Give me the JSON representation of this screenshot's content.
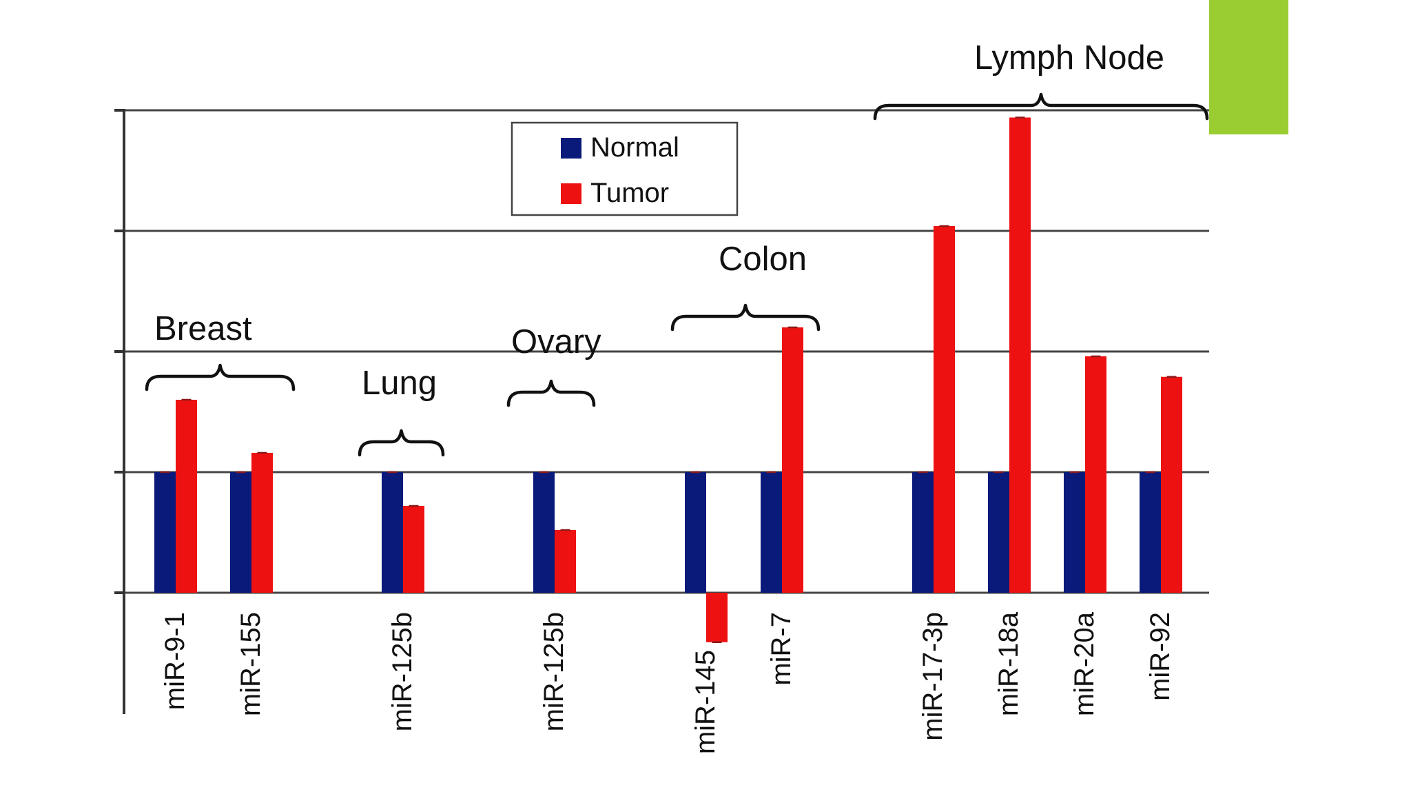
{
  "chart_data": {
    "type": "bar",
    "title": "",
    "xlabel": "",
    "ylabel": "",
    "ylim": [
      -1,
      4
    ],
    "grid": true,
    "legend_position": "top-center",
    "categories": [
      "miR-9-1",
      "miR-155",
      "miR-125b",
      "miR-125b",
      "miR-145",
      "miR-7",
      "miR-17-3p",
      "miR-18a",
      "miR-20a",
      "miR-92"
    ],
    "series": [
      {
        "name": "Normal",
        "color": "#0a1a7a",
        "values": [
          1,
          1,
          1,
          1,
          1,
          1,
          1,
          1,
          1,
          1
        ]
      },
      {
        "name": "Tumor",
        "color": "#ee1111",
        "values": [
          1.6,
          1.16,
          0.72,
          0.52,
          -0.41,
          2.2,
          3.04,
          3.94,
          1.96,
          1.79
        ]
      }
    ],
    "groups": [
      {
        "label": "Breast",
        "categories": [
          0,
          1
        ]
      },
      {
        "label": "Lung",
        "categories": [
          2
        ]
      },
      {
        "label": "Ovary",
        "categories": [
          3
        ]
      },
      {
        "label": "Colon",
        "categories": [
          4,
          5
        ]
      },
      {
        "label": "Lymph Node",
        "categories": [
          6,
          7,
          8,
          9
        ]
      }
    ]
  },
  "accent_color": "#9acd32"
}
